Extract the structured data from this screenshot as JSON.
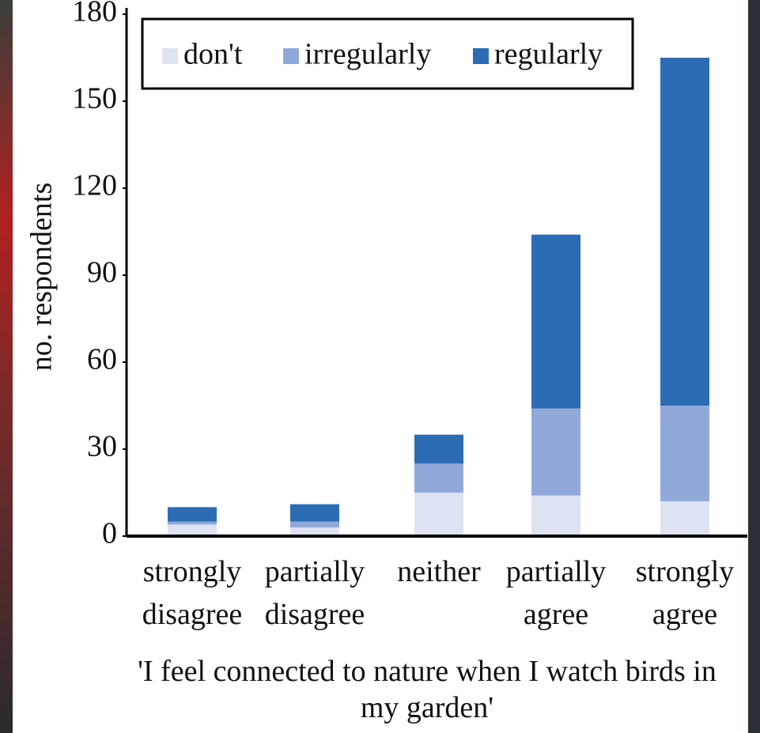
{
  "chart_data": {
    "type": "stacked-bar",
    "x_label": "'I feel connected to nature when I watch birds in my garden'",
    "y_label": "no. respondents",
    "categories": [
      "strongly disagree",
      "partially disagree",
      "neither",
      "partially agree",
      "strongly agree"
    ],
    "series": [
      {
        "name": "don't",
        "color": "#dde3f1",
        "values": [
          4,
          3,
          15,
          14,
          12
        ]
      },
      {
        "name": "irregularly",
        "color": "#91a9da",
        "values": [
          1,
          2,
          10,
          30,
          33
        ]
      },
      {
        "name": "regularly",
        "color": "#2b6cb4",
        "values": [
          5,
          6,
          10,
          60,
          120
        ]
      }
    ],
    "ylim": [
      0,
      180
    ],
    "yticks": [
      0,
      30,
      60,
      90,
      120,
      150,
      180
    ],
    "legend": "top"
  }
}
